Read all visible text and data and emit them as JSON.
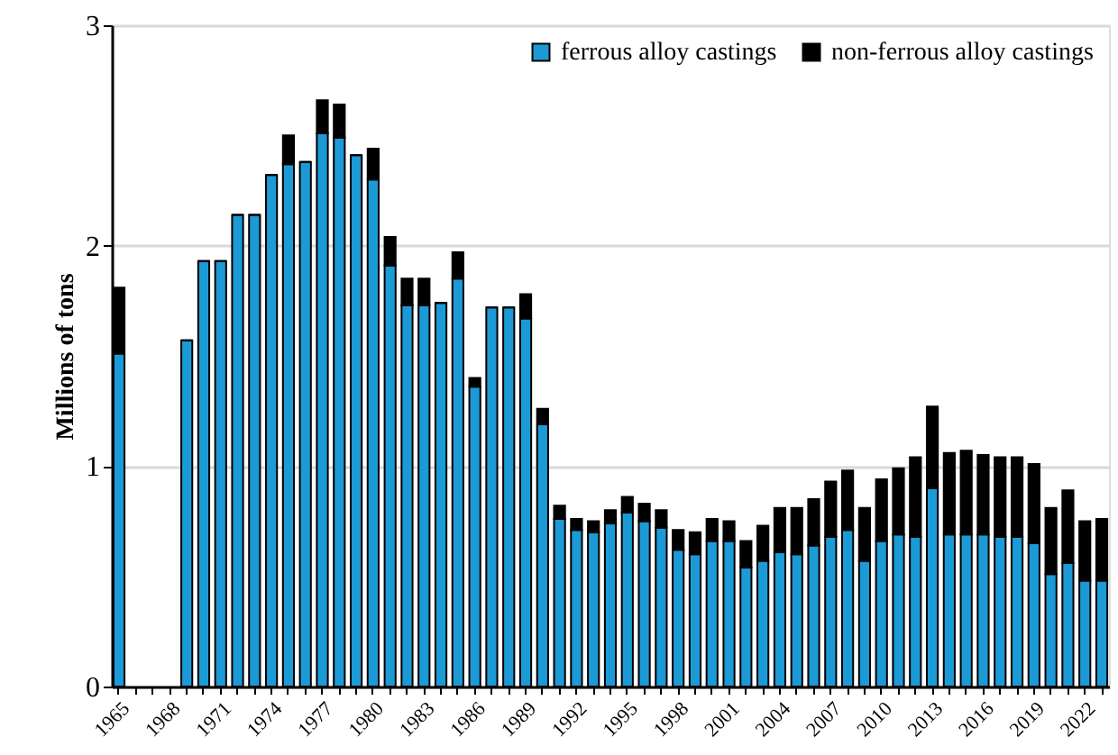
{
  "chart_data": {
    "type": "bar",
    "stacked": true,
    "ylabel": "Millions of tons",
    "categories": [
      "1965",
      null,
      null,
      "1968",
      null,
      null,
      "1971",
      null,
      null,
      "1974",
      null,
      null,
      "1977",
      null,
      null,
      "1980",
      null,
      null,
      "1983",
      null,
      null,
      "1986",
      null,
      null,
      "1989",
      null,
      null,
      "1992",
      null,
      null,
      "1995",
      null,
      null,
      "1998",
      null,
      null,
      "2001",
      null,
      null,
      "2004",
      null,
      null,
      "2007",
      null,
      null,
      "2010",
      null,
      null,
      "2013",
      null,
      null,
      "2016",
      null,
      null,
      "2019",
      null,
      null,
      "2022",
      null
    ],
    "series": [
      {
        "name": "ferrous alloy castings",
        "color": "#1b9ad6",
        "values": [
          1.51,
          null,
          null,
          null,
          1.57,
          1.93,
          1.93,
          2.14,
          2.14,
          2.32,
          2.37,
          2.38,
          2.51,
          2.49,
          2.41,
          2.3,
          1.91,
          1.73,
          1.73,
          1.74,
          1.85,
          1.36,
          1.72,
          1.72,
          1.67,
          1.19,
          0.76,
          0.71,
          0.7,
          0.74,
          0.79,
          0.75,
          0.72,
          0.62,
          0.6,
          0.66,
          0.66,
          0.54,
          0.57,
          0.61,
          0.6,
          0.64,
          0.68,
          0.71,
          0.57,
          0.66,
          0.69,
          0.68,
          0.9,
          0.69,
          0.69,
          0.69,
          0.68,
          0.68,
          0.65,
          0.51,
          0.56,
          0.48,
          0.48
        ]
      },
      {
        "name": "non-ferrous alloy castings",
        "color": "#000000",
        "values": [
          0.3,
          null,
          null,
          null,
          0,
          0,
          0,
          0,
          0,
          0,
          0.13,
          0,
          0.15,
          0.15,
          0,
          0.14,
          0.13,
          0.12,
          0.12,
          0,
          0.12,
          0.04,
          0,
          0,
          0.11,
          0.07,
          0.06,
          0.05,
          0.05,
          0.06,
          0.07,
          0.08,
          0.08,
          0.09,
          0.1,
          0.1,
          0.09,
          0.12,
          0.16,
          0.2,
          0.21,
          0.21,
          0.25,
          0.27,
          0.24,
          0.28,
          0.3,
          0.36,
          0.37,
          0.37,
          0.38,
          0.36,
          0.36,
          0.36,
          0.36,
          0.3,
          0.33,
          0.27,
          0.28
        ]
      }
    ],
    "ylim": [
      0,
      3
    ],
    "yticks": [
      0,
      1,
      2,
      3
    ],
    "grid": "y",
    "legend": "top right"
  }
}
